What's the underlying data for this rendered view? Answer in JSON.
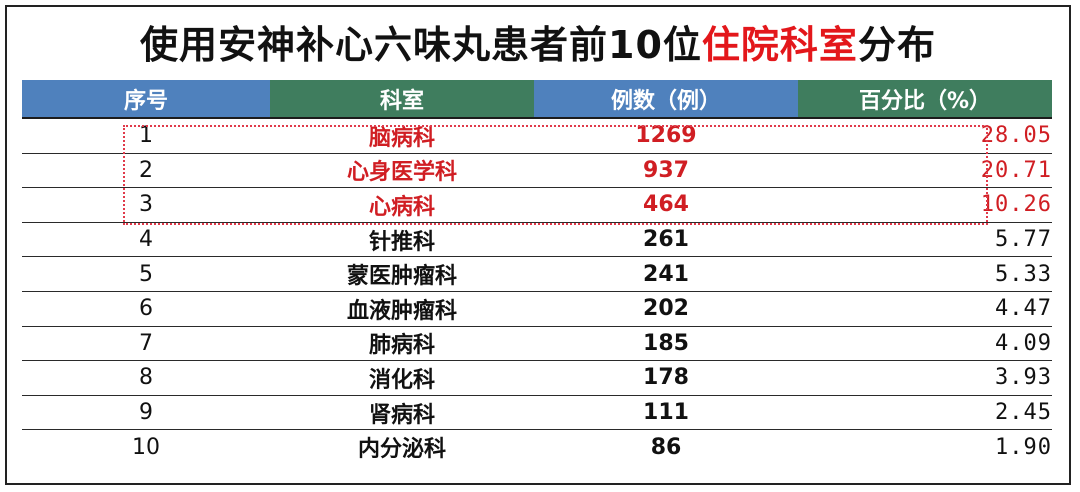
{
  "title": {
    "prefix": "使用安神补心六味丸患者前10位",
    "highlight": "住院科室",
    "suffix": "分布"
  },
  "colors": {
    "header_blue": "#4f81bd",
    "header_green": "#3f7d5e",
    "highlight_red": "#d01e23"
  },
  "table": {
    "headers": [
      "序号",
      "科室",
      "例数（例）",
      "百分比（%）"
    ],
    "rows": [
      {
        "idx": "1",
        "dept": "脑病科",
        "cases": "1269",
        "pct": "28.05"
      },
      {
        "idx": "2",
        "dept": "心身医学科",
        "cases": "937",
        "pct": "20.71"
      },
      {
        "idx": "3",
        "dept": "心病科",
        "cases": "464",
        "pct": "10.26"
      },
      {
        "idx": "4",
        "dept": "针推科",
        "cases": "261",
        "pct": "5.77"
      },
      {
        "idx": "5",
        "dept": "蒙医肿瘤科",
        "cases": "241",
        "pct": "5.33"
      },
      {
        "idx": "6",
        "dept": "血液肿瘤科",
        "cases": "202",
        "pct": "4.47"
      },
      {
        "idx": "7",
        "dept": "肺病科",
        "cases": "185",
        "pct": "4.09"
      },
      {
        "idx": "8",
        "dept": "消化科",
        "cases": "178",
        "pct": "3.93"
      },
      {
        "idx": "9",
        "dept": "肾病科",
        "cases": "111",
        "pct": "2.45"
      },
      {
        "idx": "10",
        "dept": "内分泌科",
        "cases": "86",
        "pct": "1.90"
      }
    ]
  }
}
